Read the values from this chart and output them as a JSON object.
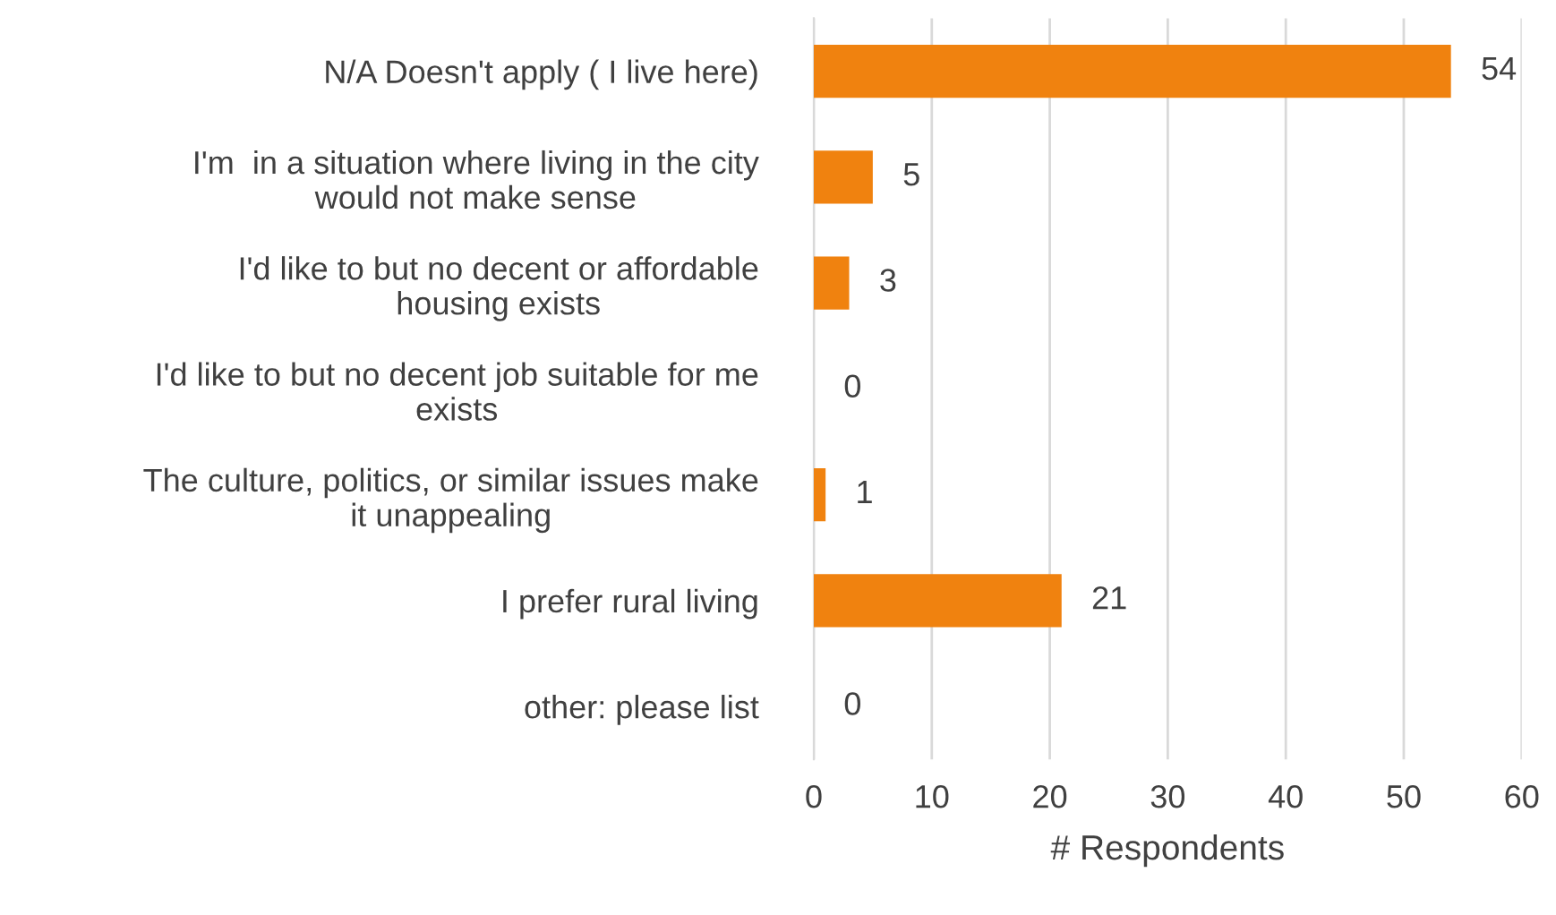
{
  "chart_data": {
    "type": "bar",
    "orientation": "horizontal",
    "xlabel": "# Respondents",
    "categories": [
      "N/A Doesn't apply ( I live here)",
      "I'm  in a situation where living in the city\nwould not make sense",
      "I'd like to but no decent or affordable\nhousing exists",
      "I'd like to but no decent job suitable for me\nexists",
      "The culture, politics, or similar issues make\nit unappealing",
      "I prefer rural living",
      "other: please list"
    ],
    "values": [
      54,
      5,
      3,
      0,
      1,
      21,
      0
    ],
    "color": "#f0820f",
    "xlim": [
      0,
      60
    ],
    "xticks": [
      0,
      10,
      20,
      30,
      40,
      50,
      60
    ],
    "grid": "x",
    "data_labels": true
  }
}
